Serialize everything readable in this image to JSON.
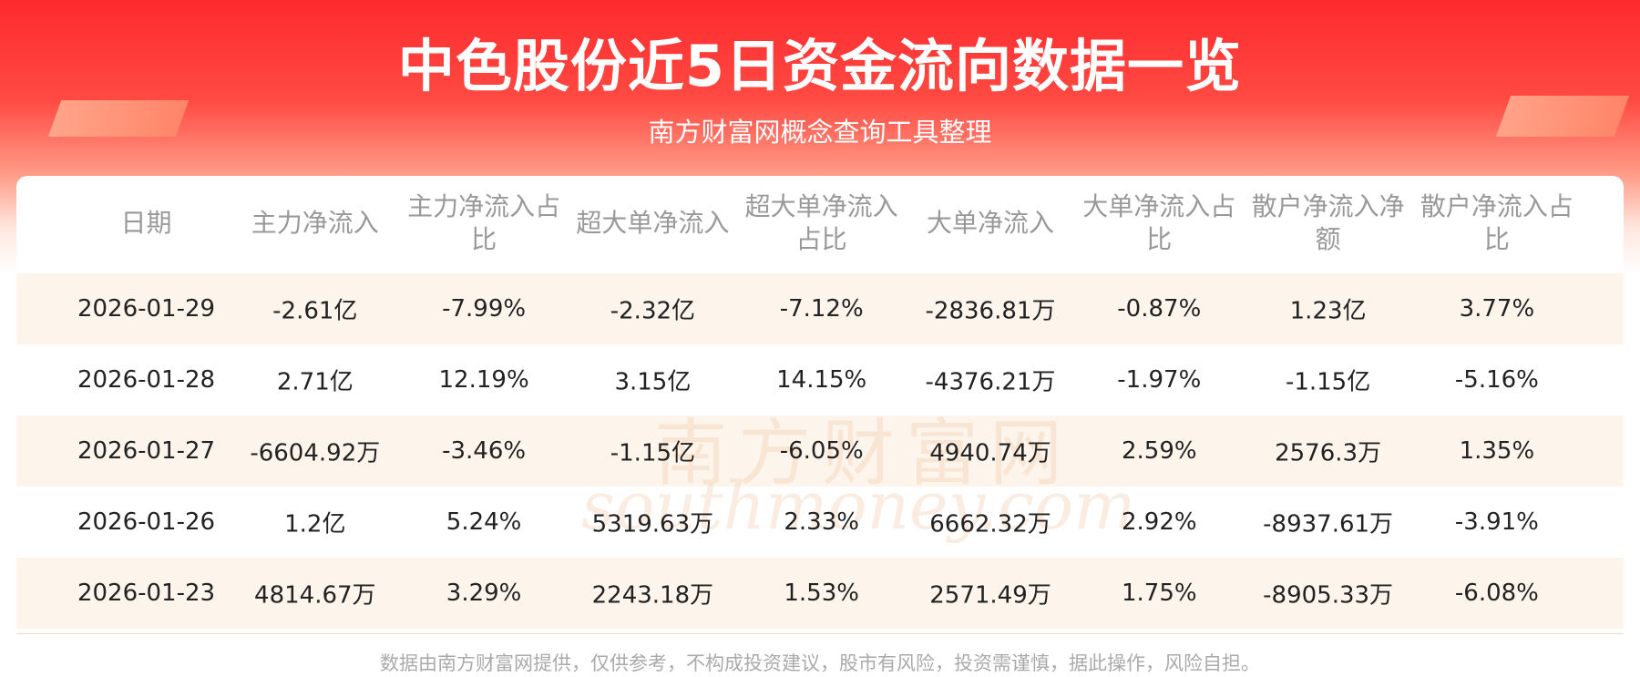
{
  "header": {
    "title": "中色股份近5日资金流向数据一览",
    "subtitle": "南方财富网概念查询工具整理"
  },
  "table": {
    "columns": [
      "日期",
      "主力净流入",
      "主力净流入占比",
      "超大单净流入",
      "超大单净流入占比",
      "大单净流入",
      "大单净流入占比",
      "散户净流入净额",
      "散户净流入占比"
    ],
    "rows": [
      [
        "2026-01-29",
        "-2.61亿",
        "-7.99%",
        "-2.32亿",
        "-7.12%",
        "-2836.81万",
        "-0.87%",
        "1.23亿",
        "3.77%"
      ],
      [
        "2026-01-28",
        "2.71亿",
        "12.19%",
        "3.15亿",
        "14.15%",
        "-4376.21万",
        "-1.97%",
        "-1.15亿",
        "-5.16%"
      ],
      [
        "2026-01-27",
        "-6604.92万",
        "-3.46%",
        "-1.15亿",
        "-6.05%",
        "4940.74万",
        "2.59%",
        "2576.3万",
        "1.35%"
      ],
      [
        "2026-01-26",
        "1.2亿",
        "5.24%",
        "5319.63万",
        "2.33%",
        "6662.32万",
        "2.92%",
        "-8937.61万",
        "-3.91%"
      ],
      [
        "2026-01-23",
        "4814.67万",
        "3.29%",
        "2243.18万",
        "1.53%",
        "2571.49万",
        "1.75%",
        "-8905.33万",
        "-6.08%"
      ]
    ]
  },
  "watermark": {
    "name": "南方财富网",
    "site": "southmoney.com"
  },
  "footer": "数据由南方财富网提供，仅供参考，不构成投资建议，股市有风险，投资需谨慎，据此操作，风险自担。"
}
